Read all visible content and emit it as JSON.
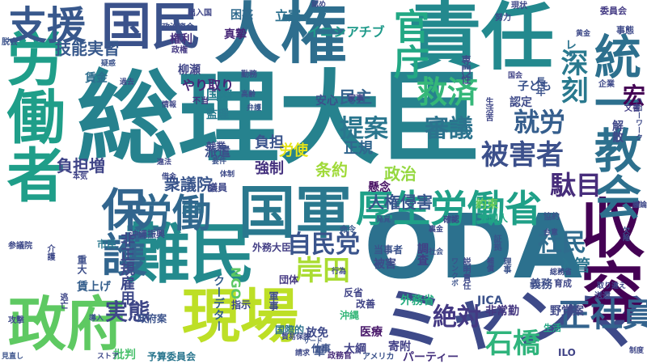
{
  "words": [
    {
      "text": "総理大臣",
      "color": "#26828e"
    },
    {
      "text": "ODA",
      "color": "#2c718e"
    },
    {
      "text": "責任",
      "color": "#23898e"
    },
    {
      "text": "人権",
      "color": "#2e6e8e"
    },
    {
      "text": "国民",
      "color": "#3b528b"
    },
    {
      "text": "労働者",
      "color": "#1f9e89"
    },
    {
      "text": "難民",
      "color": "#238a8d"
    },
    {
      "text": "国軍",
      "color": "#2a788e"
    },
    {
      "text": "厚生労働省",
      "color": "#1fa088"
    },
    {
      "text": "政府",
      "color": "#5ec962"
    },
    {
      "text": "現場",
      "color": "#bddf26"
    },
    {
      "text": "ミャンマー",
      "color": "#3e4a89"
    },
    {
      "text": "収容",
      "color": "#440154"
    },
    {
      "text": "労働",
      "color": "#31688e"
    },
    {
      "text": "統一教会",
      "color": "#2d708e"
    },
    {
      "text": "保護",
      "color": "#32658e"
    },
    {
      "text": "支援",
      "color": "#38588c"
    },
    {
      "text": "官庁",
      "color": "#22a884"
    },
    {
      "text": "救済",
      "color": "#35b779"
    },
    {
      "text": "深刻",
      "color": "#29798e"
    },
    {
      "text": "提案",
      "color": "#2a768e"
    },
    {
      "text": "審議",
      "color": "#2c738e"
    },
    {
      "text": "被害者",
      "color": "#3c508b"
    },
    {
      "text": "就労",
      "color": "#355e8d"
    },
    {
      "text": "駄目",
      "color": "#472d7b"
    },
    {
      "text": "正社員",
      "color": "#33638d"
    },
    {
      "text": "石橋",
      "color": "#2fb47c"
    },
    {
      "text": "絶対",
      "color": "#443983"
    },
    {
      "text": "実態",
      "color": "#3f4788"
    },
    {
      "text": "自民党",
      "color": "#3a548c"
    },
    {
      "text": "岸田",
      "color": "#aadc32"
    },
    {
      "text": "社民",
      "color": "#2f6c8e"
    },
    {
      "text": "技能実習",
      "color": "#38598c"
    },
    {
      "text": "負担増",
      "color": "#404588"
    },
    {
      "text": "衆議院",
      "color": "#39558c"
    },
    {
      "text": "非正規雇用",
      "color": "#3e4989"
    },
    {
      "text": "入管",
      "color": "#2b748e"
    },
    {
      "text": "人権侵害",
      "color": "#39568c"
    },
    {
      "text": "政治",
      "color": "#95d840"
    },
    {
      "text": "条約",
      "color": "#a0da39"
    },
    {
      "text": "正規",
      "color": "#31668e"
    },
    {
      "text": "労使",
      "color": "#e5e419"
    },
    {
      "text": "負担",
      "color": "#3a548c"
    },
    {
      "text": "強制",
      "color": "#46337f"
    },
    {
      "text": "民主",
      "color": "#33628d"
    },
    {
      "text": "就業",
      "color": "#3f4889"
    },
    {
      "text": "派遣",
      "color": "#3d4d8a"
    },
    {
      "text": "雇用",
      "color": "#2e6f8e"
    },
    {
      "text": "国際",
      "color": "#277f8e"
    },
    {
      "text": "監理",
      "color": "#297b8e"
    },
    {
      "text": "安心",
      "color": "#3b518b"
    },
    {
      "text": "真摯",
      "color": "#482878"
    },
    {
      "text": "立憲",
      "color": "#2d708e"
    },
    {
      "text": "困惑",
      "color": "#306a8e"
    },
    {
      "text": "イニシアチブ",
      "color": "#1f9a8a"
    },
    {
      "text": "子ども",
      "color": "#3a538b"
    },
    {
      "text": "認定",
      "color": "#3e4a89"
    },
    {
      "text": "宏",
      "color": "#440154"
    },
    {
      "text": "解散",
      "color": "#3f4788"
    },
    {
      "text": "柳瀬",
      "color": "#404688"
    },
    {
      "text": "やり取り",
      "color": "#482677"
    },
    {
      "text": "賃金",
      "color": "#2e6e8e"
    },
    {
      "text": "権利",
      "color": "#46307e"
    },
    {
      "text": "NGO",
      "color": "#5cc863"
    },
    {
      "text": "外務大臣",
      "color": "#433e85"
    },
    {
      "text": "外務省",
      "color": "#26ad81"
    },
    {
      "text": "クーデター",
      "color": "#34608d"
    },
    {
      "text": "賃上げ",
      "color": "#355f8d"
    },
    {
      "text": "政府案",
      "color": "#3b528b"
    },
    {
      "text": "医療",
      "color": "#48186a"
    },
    {
      "text": "放免",
      "color": "#3e4989"
    },
    {
      "text": "寄附",
      "color": "#424086"
    },
    {
      "text": "JICA",
      "color": "#3b528b"
    },
    {
      "text": "非常勤",
      "color": "#453781"
    },
    {
      "text": "義務",
      "color": "#3d4e8a"
    },
    {
      "text": "野党案",
      "color": "#3f4788"
    },
    {
      "text": "大綱",
      "color": "#414287"
    },
    {
      "text": "パーティー",
      "color": "#46327e"
    },
    {
      "text": "批判",
      "color": "#4ac16d"
    },
    {
      "text": "予算委員会",
      "color": "#2a768e"
    },
    {
      "text": "ILO",
      "color": "#414487"
    },
    {
      "text": "政務官",
      "color": "#472c7a"
    },
    {
      "text": "当事者",
      "color": "#3b528b"
    },
    {
      "text": "被害",
      "color": "#3e4a89"
    },
    {
      "text": "調査",
      "color": "#433e85"
    },
    {
      "text": "約束",
      "color": "#6ece58"
    },
    {
      "text": "外国人",
      "color": "#22a785"
    },
    {
      "text": "市民",
      "color": "#2a788e"
    },
    {
      "text": "沖縄振興",
      "color": "#3e4989"
    },
    {
      "text": "議員",
      "color": "#3f4889"
    },
    {
      "text": "重大",
      "color": "#3d4e8a"
    },
    {
      "text": "団体",
      "color": "#453882"
    },
    {
      "text": "国際的",
      "color": "#2c718e"
    },
    {
      "text": "改善",
      "color": "#414487"
    },
    {
      "text": "指示",
      "color": "#3e4989"
    },
    {
      "text": "懸念",
      "color": "#471063"
    },
    {
      "text": "仕事",
      "color": "#3b528b"
    },
    {
      "text": "生活",
      "color": "#22a884"
    },
    {
      "text": "育成",
      "color": "#3f4788"
    },
    {
      "text": "参議院",
      "color": "#3e4989"
    },
    {
      "text": "出入国",
      "color": "#404688"
    },
    {
      "text": "政治資金",
      "color": "#3d4e8a"
    },
    {
      "text": "専門性",
      "color": "#3e4a89"
    },
    {
      "text": "長年",
      "color": "#3b528b"
    },
    {
      "text": "努力",
      "color": "#3e4989"
    },
    {
      "text": "委員会",
      "color": "#443b84"
    },
    {
      "text": "事態",
      "color": "#3e4a89"
    },
    {
      "text": "レク",
      "color": "#2c738e"
    },
    {
      "text": "現状",
      "color": "#3f4788"
    },
    {
      "text": "黄金",
      "color": "#3e4a89"
    },
    {
      "text": "社会",
      "color": "#3b528b"
    },
    {
      "text": "命令",
      "color": "#39568c"
    },
    {
      "text": "家事",
      "color": "#414287"
    },
    {
      "text": "国会",
      "color": "#414487"
    },
    {
      "text": "認め",
      "color": "#3f4788"
    },
    {
      "text": "文書",
      "color": "#433e85"
    },
    {
      "text": "脱会",
      "color": "#3b528b"
    },
    {
      "text": "企業",
      "color": "#3e4989"
    },
    {
      "text": "政権",
      "color": "#443983"
    },
    {
      "text": "体制",
      "color": "#3e4a89"
    },
    {
      "text": "要件",
      "color": "#3b528b"
    },
    {
      "text": "違法",
      "color": "#3f4788"
    },
    {
      "text": "借金",
      "color": "#3e4989"
    },
    {
      "text": "本気",
      "color": "#414487"
    },
    {
      "text": "過去",
      "color": "#3e4a89"
    },
    {
      "text": "疑惑",
      "color": "#3b528b"
    },
    {
      "text": "情報",
      "color": "#3f4788"
    },
    {
      "text": "不当",
      "color": "#46337f"
    },
    {
      "text": "勤務",
      "color": "#3e4989"
    },
    {
      "text": "弁護",
      "color": "#3b528b"
    },
    {
      "text": "高齢",
      "color": "#3e4a89"
    },
    {
      "text": "説明責任",
      "color": "#3e4989"
    },
    {
      "text": "協約",
      "color": "#3b528b"
    },
    {
      "text": "確認",
      "color": "#3f4788"
    },
    {
      "text": "行為",
      "color": "#3e4a89"
    },
    {
      "text": "反省",
      "color": "#414487"
    },
    {
      "text": "アメリカ",
      "color": "#3b528b"
    },
    {
      "text": "請求",
      "color": "#3e4989"
    },
    {
      "text": "軍",
      "color": "#3b528b"
    },
    {
      "text": "沖縄",
      "color": "#35b779"
    },
    {
      "text": "軍事",
      "color": "#3e4a89"
    },
    {
      "text": "導入",
      "color": "#3b528b"
    },
    {
      "text": "介護",
      "color": "#3e4989"
    },
    {
      "text": "逃亡",
      "color": "#3f4788"
    },
    {
      "text": "攻撃",
      "color": "#3e4a89"
    },
    {
      "text": "見直し",
      "color": "#3b528b"
    },
    {
      "text": "ストア",
      "color": "#3e4989"
    },
    {
      "text": "生活苦",
      "color": "#3f4788"
    },
    {
      "text": "発覚",
      "color": "#3b528b"
    },
    {
      "text": "裏金",
      "color": "#3e4a89"
    },
    {
      "text": "貿易保険",
      "color": "#3e4989"
    },
    {
      "text": "サード",
      "color": "#3b528b"
    },
    {
      "text": "送還",
      "color": "#3e4a89"
    },
    {
      "text": "理事",
      "color": "#3b528b"
    },
    {
      "text": "補償",
      "color": "#3e4989"
    },
    {
      "text": "取り違え",
      "color": "#3f4788"
    },
    {
      "text": "欠陥",
      "color": "#3b528b"
    },
    {
      "text": "ハローワーク",
      "color": "#3e4a89"
    },
    {
      "text": "総務省",
      "color": "#3e4989"
    },
    {
      "text": "ワンクボ",
      "color": "#3b528b"
    },
    {
      "text": "合意",
      "color": "#3e4a89"
    },
    {
      "text": "証拠",
      "color": "#3b528b"
    },
    {
      "text": "議論",
      "color": "#3e4989"
    },
    {
      "text": "制度",
      "color": "#3f4788"
    }
  ]
}
